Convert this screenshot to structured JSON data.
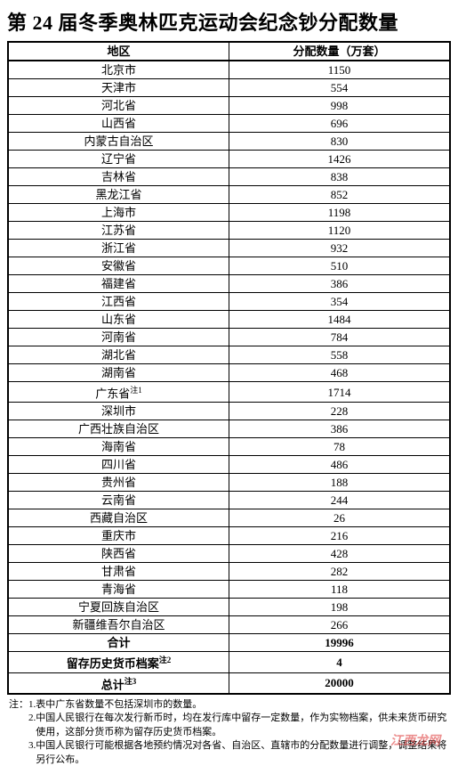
{
  "title": "第 24 届冬季奥林匹克运动会纪念钞分配数量",
  "table": {
    "columns": [
      "地区",
      "分配数量（万套）"
    ],
    "rows": [
      {
        "region": "北京市",
        "qty": "1150"
      },
      {
        "region": "天津市",
        "qty": "554"
      },
      {
        "region": "河北省",
        "qty": "998"
      },
      {
        "region": "山西省",
        "qty": "696"
      },
      {
        "region": "内蒙古自治区",
        "qty": "830"
      },
      {
        "region": "辽宁省",
        "qty": "1426"
      },
      {
        "region": "吉林省",
        "qty": "838"
      },
      {
        "region": "黑龙江省",
        "qty": "852"
      },
      {
        "region": "上海市",
        "qty": "1198"
      },
      {
        "region": "江苏省",
        "qty": "1120"
      },
      {
        "region": "浙江省",
        "qty": "932"
      },
      {
        "region": "安徽省",
        "qty": "510"
      },
      {
        "region": "福建省",
        "qty": "386"
      },
      {
        "region": "江西省",
        "qty": "354"
      },
      {
        "region": "山东省",
        "qty": "1484"
      },
      {
        "region": "河南省",
        "qty": "784"
      },
      {
        "region": "湖北省",
        "qty": "558"
      },
      {
        "region": "湖南省",
        "qty": "468"
      },
      {
        "region": "广东省",
        "sup": "注1",
        "qty": "1714"
      },
      {
        "region": "深圳市",
        "qty": "228"
      },
      {
        "region": "广西壮族自治区",
        "qty": "386"
      },
      {
        "region": "海南省",
        "qty": "78"
      },
      {
        "region": "四川省",
        "qty": "486"
      },
      {
        "region": "贵州省",
        "qty": "188"
      },
      {
        "region": "云南省",
        "qty": "244"
      },
      {
        "region": "西藏自治区",
        "qty": "26"
      },
      {
        "region": "重庆市",
        "qty": "216"
      },
      {
        "region": "陕西省",
        "qty": "428"
      },
      {
        "region": "甘肃省",
        "qty": "282"
      },
      {
        "region": "青海省",
        "qty": "118"
      },
      {
        "region": "宁夏回族自治区",
        "qty": "198"
      },
      {
        "region": "新疆维吾尔自治区",
        "qty": "266"
      }
    ],
    "summary": [
      {
        "label": "合计",
        "qty": "19996",
        "bold": true
      },
      {
        "label": "留存历史货币档案",
        "sup": "注2",
        "qty": "4",
        "bold": true
      },
      {
        "label": "总计",
        "sup": "注3",
        "qty": "20000",
        "bold": true
      }
    ]
  },
  "notes": {
    "prefix": "注：",
    "items": [
      {
        "num": "1.",
        "text": "表中广东省数量不包括深圳市的数量。"
      },
      {
        "num": "2.",
        "text": "中国人民银行在每次发行新币时，均在发行库中留存一定数量，作为实物档案，供未来货币研究使用，这部分货币称为留存历史货币档案。"
      },
      {
        "num": "3.",
        "text": "中国人民银行可能根据各地预约情况对各省、自治区、直辖市的分配数量进行调整，调整结果将另行公布。"
      }
    ]
  },
  "watermark": "江西龙网",
  "styling": {
    "border_color": "#000000",
    "background": "#ffffff",
    "title_fontsize": 22,
    "cell_fontsize": 13,
    "note_fontsize": 11,
    "watermark_color": "rgba(220,50,50,0.55)"
  }
}
